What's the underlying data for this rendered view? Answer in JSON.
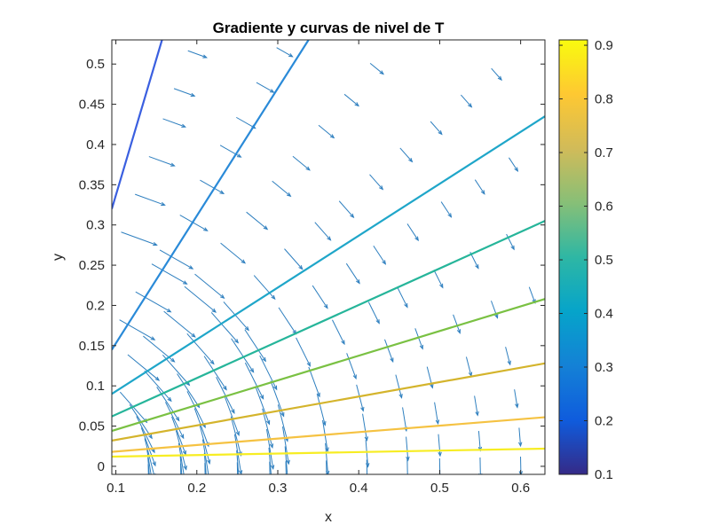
{
  "chart_data": {
    "type": "contour",
    "title": "Gradiente y curvas de nivel de T",
    "xlabel": "x",
    "ylabel": "y",
    "xlim": [
      0.095,
      0.63
    ],
    "ylim": [
      -0.01,
      0.53
    ],
    "xticks": [
      0.1,
      0.2,
      0.3,
      0.4,
      0.5,
      0.6
    ],
    "xtick_labels": [
      "0.1",
      "0.2",
      "0.3",
      "0.4",
      "0.5",
      "0.6"
    ],
    "yticks": [
      0,
      0.05,
      0.1,
      0.15,
      0.2,
      0.25,
      0.3,
      0.35,
      0.4,
      0.45,
      0.5
    ],
    "ytick_labels": [
      "0",
      "0.05",
      "0.1",
      "0.15",
      "0.2",
      "0.25",
      "0.3",
      "0.35",
      "0.4",
      "0.45",
      "0.5"
    ],
    "grid": false,
    "contour_lines": [
      {
        "level": 0.2,
        "color": "#3a5fe0",
        "x": [
          0.095,
          0.157
        ],
        "y": [
          0.32,
          0.53
        ]
      },
      {
        "level": 0.3,
        "color": "#2a8ad8",
        "x": [
          0.095,
          0.338
        ],
        "y": [
          0.145,
          0.53
        ]
      },
      {
        "level": 0.4,
        "color": "#1fa6c9",
        "x": [
          0.095,
          0.63
        ],
        "y": [
          0.09,
          0.435
        ]
      },
      {
        "level": 0.5,
        "color": "#26b59a",
        "x": [
          0.095,
          0.63
        ],
        "y": [
          0.062,
          0.305
        ]
      },
      {
        "level": 0.6,
        "color": "#7ac143",
        "x": [
          0.095,
          0.63
        ],
        "y": [
          0.044,
          0.208
        ]
      },
      {
        "level": 0.7,
        "color": "#d4b42c",
        "x": [
          0.095,
          0.63
        ],
        "y": [
          0.032,
          0.128
        ]
      },
      {
        "level": 0.8,
        "color": "#f5c242",
        "x": [
          0.095,
          0.63
        ],
        "y": [
          0.018,
          0.061
        ]
      },
      {
        "level": 0.9,
        "color": "#f7ed23",
        "x": [
          0.095,
          0.63
        ],
        "y": [
          0.012,
          0.022
        ]
      }
    ],
    "quiver": {
      "color": "#2e7fbf",
      "description_field": "arrows perpendicular to contour lines, tangent to circles centred at the origin"
    },
    "colorbar": {
      "ticks": [
        0.1,
        0.2,
        0.3,
        0.4,
        0.5,
        0.6,
        0.7,
        0.8,
        0.9
      ],
      "tick_labels": [
        "0.1",
        "0.2",
        "0.3",
        "0.4",
        "0.5",
        "0.6",
        "0.7",
        "0.8",
        "0.9"
      ],
      "range": [
        0.1,
        0.91
      ],
      "colormap": "parula"
    }
  }
}
